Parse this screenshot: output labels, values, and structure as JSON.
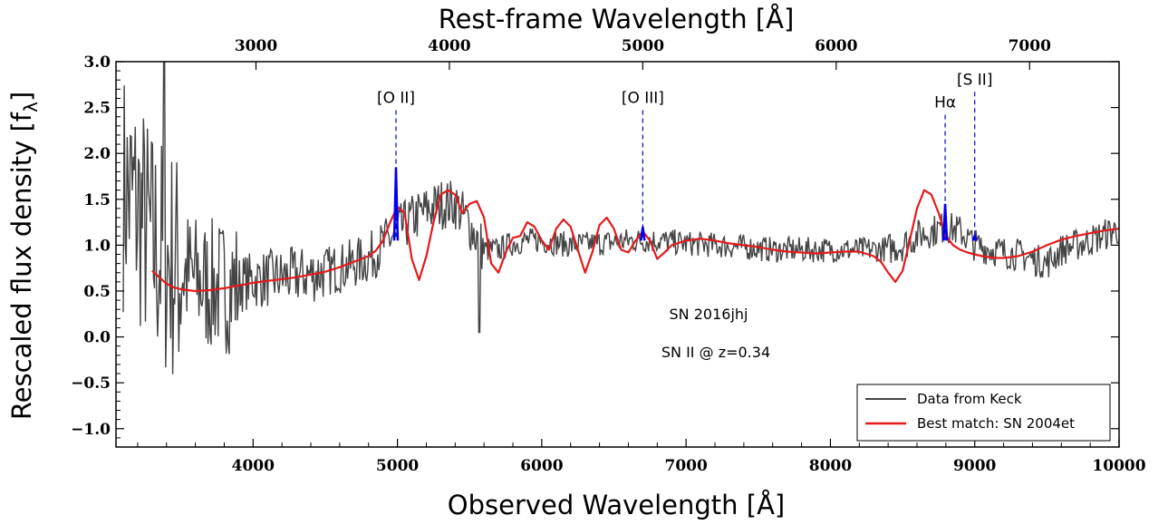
{
  "chart_data": {
    "type": "line",
    "xlabel": "Observed Wavelength [Å]",
    "x2label": "Rest-frame Wavelength [Å]",
    "ylabel": "Rescaled flux density [f",
    "ylabel_sub": "λ",
    "ylabel_close": "]",
    "xlim": [
      3050,
      10000
    ],
    "ylim": [
      -1.2,
      3.0
    ],
    "redshift": 0.34,
    "grid": false,
    "legend_position": "lower-right",
    "x_ticks": [
      4000,
      5000,
      6000,
      7000,
      8000,
      9000,
      10000
    ],
    "x_tick_labels": [
      "4000",
      "5000",
      "6000",
      "7000",
      "8000",
      "9000",
      "10000"
    ],
    "y_ticks": [
      -1.0,
      -0.5,
      0.0,
      0.5,
      1.0,
      1.5,
      2.0,
      2.5,
      3.0
    ],
    "y_tick_labels": [
      "−1.0",
      "−0.5",
      "0.0",
      "0.5",
      "1.0",
      "1.5",
      "2.0",
      "2.5",
      "3.0"
    ],
    "x2_ticks": [
      3000,
      4000,
      5000,
      6000,
      7000
    ],
    "x2_tick_labels": [
      "3000",
      "4000",
      "5000",
      "6000",
      "7000"
    ],
    "series": [
      {
        "name": "Data from Keck",
        "color": "#444444",
        "style": "noisy-spectrum",
        "x": [
          3100,
          3200,
          3300,
          3400,
          3500,
          3600,
          3700,
          3800,
          3900,
          4000,
          4200,
          4400,
          4600,
          4800,
          4900,
          5000,
          5100,
          5200,
          5300,
          5400,
          5500,
          5600,
          5700,
          5800,
          5900,
          6000,
          6200,
          6400,
          6600,
          6800,
          7000,
          7200,
          7400,
          7600,
          7800,
          8000,
          8200,
          8400,
          8500,
          8600,
          8700,
          8800,
          8900,
          9000,
          9200,
          9300,
          9400,
          9500,
          9600,
          9800,
          10000
        ],
        "y": [
          1.62,
          1.4,
          1.0,
          0.85,
          0.72,
          0.62,
          0.55,
          0.55,
          0.58,
          0.62,
          0.65,
          0.68,
          0.75,
          0.85,
          1.0,
          1.15,
          1.28,
          1.38,
          1.45,
          1.45,
          1.22,
          0.95,
          0.95,
          1.02,
          1.05,
          1.05,
          1.0,
          1.02,
          1.05,
          1.05,
          1.02,
          1.0,
          0.98,
          0.95,
          0.95,
          0.95,
          0.95,
          0.96,
          1.0,
          1.1,
          1.15,
          1.2,
          1.15,
          1.0,
          0.92,
          0.9,
          0.85,
          0.8,
          0.95,
          1.05,
          1.18
        ]
      },
      {
        "name": "Best match: SN 2004et",
        "color": "#e41a1c",
        "x": [
          3300,
          3350,
          3400,
          3450,
          3500,
          3550,
          3600,
          3700,
          3800,
          3900,
          4000,
          4100,
          4200,
          4300,
          4400,
          4500,
          4600,
          4700,
          4800,
          4850,
          4900,
          4950,
          5000,
          5050,
          5100,
          5150,
          5200,
          5250,
          5300,
          5350,
          5400,
          5450,
          5500,
          5550,
          5600,
          5650,
          5700,
          5750,
          5800,
          5850,
          5900,
          5950,
          6000,
          6050,
          6100,
          6150,
          6200,
          6250,
          6300,
          6350,
          6400,
          6450,
          6500,
          6550,
          6600,
          6650,
          6700,
          6750,
          6800,
          6850,
          6900,
          7000,
          7100,
          7200,
          7300,
          7400,
          7500,
          7600,
          7700,
          7800,
          7900,
          8000,
          8100,
          8200,
          8300,
          8350,
          8400,
          8450,
          8500,
          8550,
          8600,
          8650,
          8700,
          8750,
          8800,
          8850,
          8900,
          8950,
          9000,
          9050,
          9100,
          9150,
          9200,
          9300,
          9400,
          9500,
          9600,
          9700,
          9800,
          9900,
          10000
        ],
        "y": [
          0.72,
          0.65,
          0.58,
          0.54,
          0.52,
          0.51,
          0.5,
          0.51,
          0.53,
          0.56,
          0.59,
          0.61,
          0.63,
          0.65,
          0.68,
          0.71,
          0.76,
          0.82,
          0.88,
          0.94,
          1.05,
          1.25,
          1.42,
          1.35,
          0.85,
          0.62,
          0.88,
          1.25,
          1.55,
          1.6,
          1.55,
          1.35,
          1.45,
          1.48,
          1.3,
          0.8,
          0.7,
          0.92,
          1.08,
          1.1,
          1.25,
          1.2,
          1.05,
          0.95,
          1.18,
          1.28,
          1.2,
          0.95,
          0.7,
          0.92,
          1.22,
          1.3,
          1.18,
          0.95,
          0.92,
          1.05,
          1.15,
          1.05,
          0.85,
          0.92,
          1.0,
          1.05,
          1.07,
          1.05,
          1.02,
          1.0,
          0.98,
          0.95,
          0.93,
          0.92,
          0.91,
          0.92,
          0.93,
          0.93,
          0.88,
          0.82,
          0.7,
          0.6,
          0.72,
          1.05,
          1.4,
          1.6,
          1.55,
          1.35,
          1.1,
          1.0,
          0.95,
          0.92,
          0.9,
          0.88,
          0.87,
          0.86,
          0.86,
          0.88,
          0.93,
          1.0,
          1.06,
          1.1,
          1.13,
          1.16,
          1.18
        ]
      }
    ],
    "line_markers": [
      {
        "label": "[O II]",
        "x_obs": 4990,
        "peak": 1.85,
        "label_y": 2.55
      },
      {
        "label": "[O III]",
        "x_obs": 6700,
        "peak": 1.2,
        "label_y": 2.55
      },
      {
        "label": "Hα",
        "x_obs": 8795,
        "peak": 1.45,
        "label_y": 2.5
      },
      {
        "label": "[S II]",
        "x_obs": 9000,
        "peak": 1.1,
        "label_y": 2.75
      }
    ],
    "annotations": [
      "SN 2016jhj",
      "SN II @ z=0.34"
    ],
    "legend": [
      "Data from Keck",
      "Best match: SN 2004et"
    ]
  }
}
